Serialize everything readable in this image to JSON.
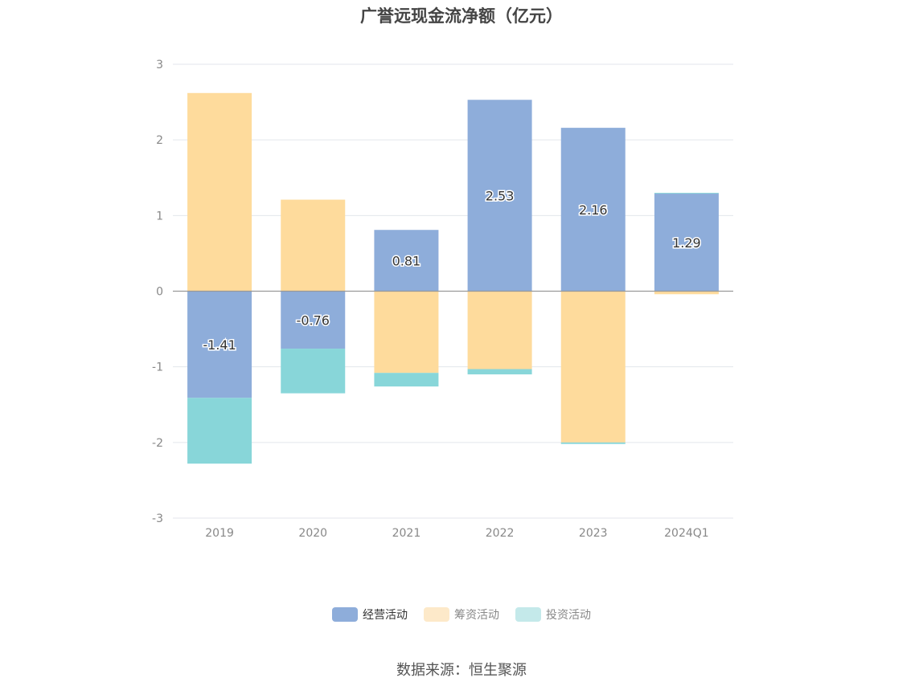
{
  "chart_data": {
    "type": "bar",
    "stacked": true,
    "title": "广誉远现金流净额（亿元）",
    "categories": [
      "2019",
      "2020",
      "2021",
      "2022",
      "2023",
      "2024Q1"
    ],
    "ylim": [
      -3,
      3
    ],
    "yticks": [
      3,
      2,
      1,
      0,
      -1,
      -2,
      -3
    ],
    "grid": true,
    "legend_position": "bottom",
    "series": [
      {
        "name": "经营活动",
        "color": "#8eadda",
        "values": [
          -1.41,
          -0.76,
          0.81,
          2.53,
          2.16,
          1.29
        ],
        "labels": [
          "-1.41",
          "-0.76",
          "0.81",
          "2.53",
          "2.16",
          "1.29"
        ]
      },
      {
        "name": "筹资活动",
        "color": "#fedb9c",
        "values": [
          2.62,
          1.21,
          -1.08,
          -1.03,
          -2.0,
          -0.04
        ]
      },
      {
        "name": "投资活动",
        "color": "#88d6d9",
        "values": [
          -0.87,
          -0.59,
          -0.18,
          -0.07,
          -0.02,
          0.01
        ]
      }
    ]
  },
  "legend": {
    "items": [
      {
        "label": "经营活动",
        "color": "#8eadda",
        "swatch": "#8eadda"
      },
      {
        "label": "筹资活动",
        "color": "#fedb9c",
        "swatch": "#fde9c9"
      },
      {
        "label": "投资活动",
        "color": "#88d6d9",
        "swatch": "#c4e9ea"
      }
    ]
  },
  "source": "数据来源：恒生聚源"
}
